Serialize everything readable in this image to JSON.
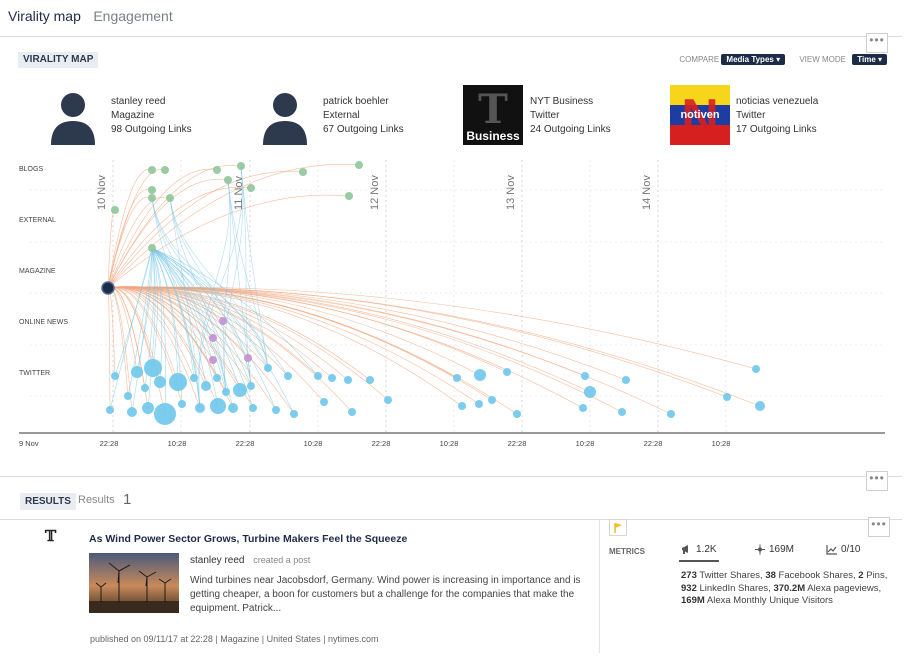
{
  "tabs": [
    {
      "label": "Virality map",
      "active": true
    },
    {
      "label": "Engagement",
      "active": false
    }
  ],
  "virality": {
    "section_label": "VIRALITY MAP",
    "compare_label": "COMPARE",
    "compare_value": "Media Types ▾",
    "viewmode_label": "VIEW MODE",
    "viewmode_value": "Time ▾",
    "more_icon": "•••"
  },
  "sources": [
    {
      "name": "stanley reed",
      "type": "Magazine",
      "links": "98 Outgoing Links",
      "avatar": "person-icon"
    },
    {
      "name": "patrick boehler",
      "type": "External",
      "links": "67 Outgoing Links",
      "avatar": "person-icon"
    },
    {
      "name": "NYT Business",
      "type": "Twitter",
      "links": "24 Outgoing Links",
      "avatar": "nyt-business-logo",
      "logo_text": "Business"
    },
    {
      "name": "noticias venezuela",
      "type": "Twitter",
      "links": "17 Outgoing Links",
      "avatar": "notiven-logo",
      "logo_text": "notiven"
    }
  ],
  "chart_data": {
    "type": "scatter",
    "categories": [
      "BLOGS",
      "EXTERNAL",
      "MAGAZINE",
      "ONLINE NEWS",
      "TWITTER"
    ],
    "date_labels": [
      "10 Nov",
      "11 Nov",
      "12 Nov",
      "13 Nov",
      "14 Nov"
    ],
    "start_label": "9 Nov",
    "time_ticks": [
      "22:28",
      "10:28",
      "22:28",
      "10:28",
      "22:28",
      "10:28",
      "22:28",
      "10:28",
      "22:28",
      "10:28"
    ],
    "colors": {
      "blogs": "#8fc79a",
      "external": "#8fc79a",
      "magazine": "#1c2b46",
      "online_news": "#c38fd1",
      "twitter": "#6ec6ec",
      "link_orange": "#f4a47a",
      "link_blue": "#79c8e8"
    }
  },
  "results": {
    "label": "RESULTS",
    "text": "Results",
    "count": "1"
  },
  "article": {
    "source_logo": "𝕋",
    "headline": "As Wind Power Sector Grows, Turbine Makers Feel the Squeeze",
    "author": "stanley reed",
    "action": "created a post",
    "snippet": "Wind turbines near Jacobsdorf, Germany. Wind power is increasing in importance and is getting cheaper, a boon for customers but a challenge for the companies that make the equipment. Patrick...",
    "published": "published on 09/11/17 at 22:28 | Magazine | United States | nytimes.com"
  },
  "metrics": {
    "label": "METRICS",
    "shares": "1.2K",
    "reach": "169M",
    "score": "0/10",
    "details": [
      {
        "value": "273",
        "text": " Twitter Shares, "
      },
      {
        "value": "38",
        "text": " Facebook Shares, "
      },
      {
        "value": "2",
        "text": " Pins, "
      },
      {
        "value": "932",
        "text": " LinkedIn Shares, "
      },
      {
        "value": "370.2M",
        "text": " Alexa pageviews, "
      },
      {
        "value": "169M",
        "text": " Alexa Monthly Unique Visitors"
      }
    ]
  }
}
